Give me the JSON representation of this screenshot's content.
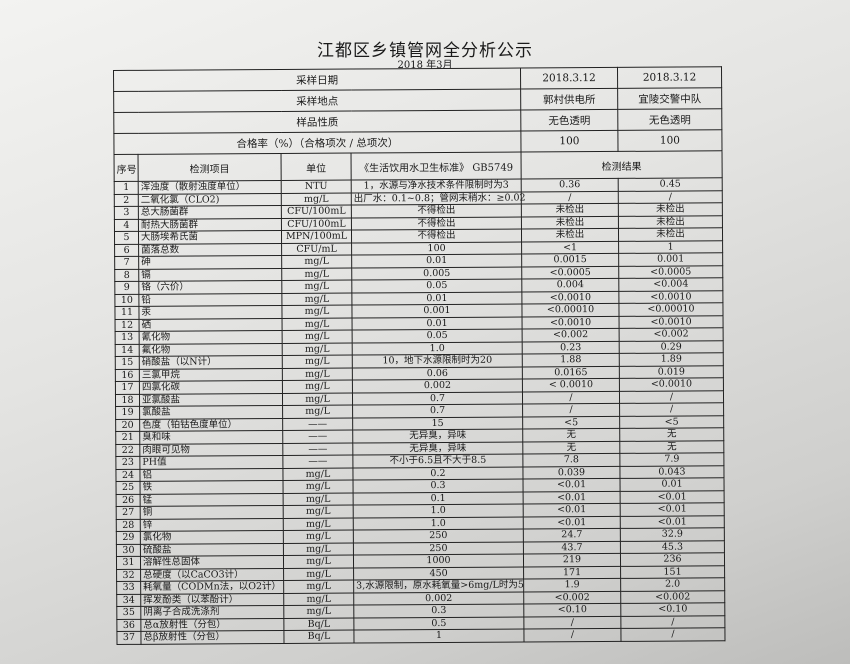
{
  "title": "江都区乡镇管网全分析公示",
  "subtitle": "2018 年3月",
  "meta": [
    {
      "label": "采样日期",
      "v1": "2018.3.12",
      "v2": "2018.3.12"
    },
    {
      "label": "采样地点",
      "v1": "郭村供电所",
      "v2": "宜陵交警中队"
    },
    {
      "label": "样品性质",
      "v1": "无色透明",
      "v2": "无色透明"
    },
    {
      "label": "合格率（%）（合格项次 / 总项次）",
      "v1": "100",
      "v2": "100"
    }
  ],
  "headers": {
    "no": "序号",
    "item": "检测项目",
    "unit": "单位",
    "standard": "《生活饮用水卫生标准》 GB5749",
    "result": "检测结果"
  },
  "rows": [
    [
      "1",
      "浑浊度（散射浊度单位）",
      "NTU",
      "1，水源与净水技术条件限制时为3",
      "0.36",
      "0.45"
    ],
    [
      "2",
      "二氧化氯（CLO2)",
      "mg/L",
      "出厂水：0.1~0.8；管网末稍水：≥0.02",
      "/",
      "/"
    ],
    [
      "3",
      "总大肠菌群",
      "CFU/100mL",
      "不得检出",
      "未检出",
      "未检出"
    ],
    [
      "4",
      "耐热大肠菌群",
      "CFU/100mL",
      "不得检出",
      "未检出",
      "未检出"
    ],
    [
      "5",
      "大肠埃希氏菌",
      "MPN/100mL",
      "不得检出",
      "未检出",
      "未检出"
    ],
    [
      "6",
      "菌落总数",
      "CFU/mL",
      "100",
      "<1",
      "1"
    ],
    [
      "7",
      "砷",
      "mg/L",
      "0.01",
      "0.0015",
      "0.001"
    ],
    [
      "8",
      "镉",
      "mg/L",
      "0.005",
      "<0.0005",
      "<0.0005"
    ],
    [
      "9",
      "铬（六价）",
      "mg/L",
      "0.05",
      "0.004",
      "<0.004"
    ],
    [
      "10",
      "铅",
      "mg/L",
      "0.01",
      "<0.0010",
      "<0.0010"
    ],
    [
      "11",
      "汞",
      "mg/L",
      "0.001",
      "<0.00010",
      "<0.00010"
    ],
    [
      "12",
      "硒",
      "mg/L",
      "0.01",
      "<0.0010",
      "<0.0010"
    ],
    [
      "13",
      "氰化物",
      "mg/L",
      "0.05",
      "<0.002",
      "<0.002"
    ],
    [
      "14",
      "氟化物",
      "mg/L",
      "1.0",
      "0.23",
      "0.29"
    ],
    [
      "15",
      "硝酸盐（以N计）",
      "mg/L",
      "10，地下水源限制时为20",
      "1.88",
      "1.89"
    ],
    [
      "16",
      "三氯甲烷",
      "mg/L",
      "0.06",
      "0.0165",
      "0.019"
    ],
    [
      "17",
      "四氯化碳",
      "mg/L",
      "0.002",
      "< 0.0010",
      "<0.0010"
    ],
    [
      "18",
      "亚氯酸盐",
      "mg/L",
      "0.7",
      "/",
      "/"
    ],
    [
      "19",
      "氯酸盐",
      "mg/L",
      "0.7",
      "/",
      "/"
    ],
    [
      "20",
      "色度（铂钴色度单位）",
      "——",
      "15",
      "<5",
      "<5"
    ],
    [
      "21",
      "臭和味",
      "——",
      "无异臭，异味",
      "无",
      "无"
    ],
    [
      "22",
      "肉眼可见物",
      "——",
      "无异臭，异味",
      "无",
      "无"
    ],
    [
      "23",
      "PH值",
      "——",
      "不小于6.5且不大于8.5",
      "7.8",
      "7.9"
    ],
    [
      "24",
      "铝",
      "mg/L",
      "0.2",
      "0.039",
      "0.043"
    ],
    [
      "25",
      "铁",
      "mg/L",
      "0.3",
      "<0.01",
      "0.01"
    ],
    [
      "26",
      "锰",
      "mg/L",
      "0.1",
      "<0.01",
      "<0.01"
    ],
    [
      "27",
      "铜",
      "mg/L",
      "1.0",
      "<0.01",
      "<0.01"
    ],
    [
      "28",
      "锌",
      "mg/L",
      "1.0",
      "<0.01",
      "<0.01"
    ],
    [
      "29",
      "氯化物",
      "mg/L",
      "250",
      "24.7",
      "32.9"
    ],
    [
      "30",
      "硫酸盐",
      "mg/L",
      "250",
      "43.7",
      "45.3"
    ],
    [
      "31",
      "溶解性总固体",
      "mg/L",
      "1000",
      "219",
      "236"
    ],
    [
      "32",
      "总硬度（以CaCO3计）",
      "mg/L",
      "450",
      "171",
      "151"
    ],
    [
      "33",
      "耗氧量（CODMn法，以O2计）",
      "mg/L",
      "3,水源限制，原水耗氧量>6mg/L时为5",
      "1.9",
      "2.0"
    ],
    [
      "34",
      "挥发酚类（以苯酚计）",
      "mg/L",
      "0.002",
      "<0.002",
      "<0.002"
    ],
    [
      "35",
      "阴离子合成洗涤剂",
      "mg/L",
      "0.3",
      "<0.10",
      "<0.10"
    ],
    [
      "36",
      "总α放射性（分包）",
      "Bq/L",
      "0.5",
      "/",
      "/"
    ],
    [
      "37",
      "总β放射性（分包）",
      "Bq/L",
      "1",
      "/",
      "/"
    ]
  ]
}
